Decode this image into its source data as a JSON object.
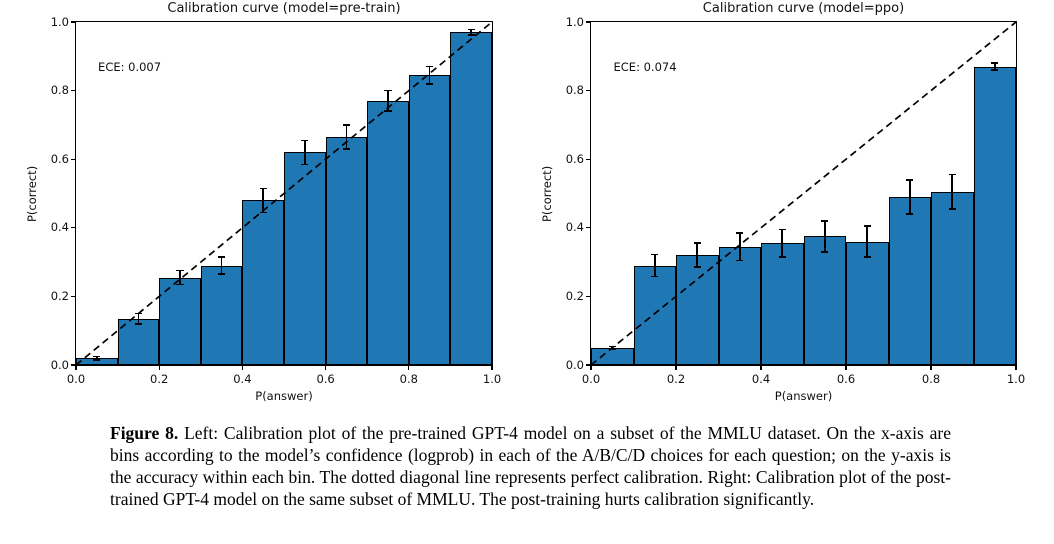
{
  "figure": {
    "caption": {
      "label": "Figure 8.",
      "text": " Left: Calibration plot of the pre-trained GPT-4 model on a subset of the MMLU dataset. On the x-axis are bins according to the model’s confidence (logprob) in each of the A/B/C/D choices for each question; on the y-axis is the accuracy within each bin. The dotted diagonal line represents perfect calibration. Right: Calibration plot of the post-trained GPT-4 model on the same subset of MMLU. The post-training hurts calibration significantly."
    }
  },
  "chart_data": [
    {
      "type": "bar",
      "title": "Calibration curve (model=pre-train)",
      "annotation": "ECE: 0.007",
      "xlabel": "P(answer)",
      "ylabel": "P(correct)",
      "xlim": [
        0.0,
        1.0
      ],
      "ylim": [
        0.0,
        1.0
      ],
      "xticks": [
        0.0,
        0.2,
        0.4,
        0.6,
        0.8,
        1.0
      ],
      "yticks": [
        0.0,
        0.2,
        0.4,
        0.6,
        0.8,
        1.0
      ],
      "bin_width": 0.1,
      "bin_left_edges": [
        0.0,
        0.1,
        0.2,
        0.3,
        0.4,
        0.5,
        0.6,
        0.7,
        0.8,
        0.9
      ],
      "values": [
        0.02,
        0.135,
        0.255,
        0.29,
        0.48,
        0.62,
        0.665,
        0.77,
        0.845,
        0.97
      ],
      "errors": [
        0.005,
        0.015,
        0.02,
        0.025,
        0.035,
        0.035,
        0.035,
        0.03,
        0.025,
        0.008
      ],
      "bar_color": "#1f77b4",
      "bar_edge_color": "#000000",
      "reference_line": "dashed diagonal y=x (perfect calibration)",
      "grid": false,
      "legend": "none"
    },
    {
      "type": "bar",
      "title": "Calibration curve (model=ppo)",
      "annotation": "ECE: 0.074",
      "xlabel": "P(answer)",
      "ylabel": "P(correct)",
      "xlim": [
        0.0,
        1.0
      ],
      "ylim": [
        0.0,
        1.0
      ],
      "xticks": [
        0.0,
        0.2,
        0.4,
        0.6,
        0.8,
        1.0
      ],
      "yticks": [
        0.0,
        0.2,
        0.4,
        0.6,
        0.8,
        1.0
      ],
      "bin_width": 0.1,
      "bin_left_edges": [
        0.0,
        0.1,
        0.2,
        0.3,
        0.4,
        0.5,
        0.6,
        0.7,
        0.8,
        0.9
      ],
      "values": [
        0.05,
        0.29,
        0.32,
        0.345,
        0.355,
        0.375,
        0.36,
        0.49,
        0.505,
        0.87
      ],
      "errors": [
        0.004,
        0.032,
        0.035,
        0.04,
        0.04,
        0.045,
        0.045,
        0.05,
        0.05,
        0.01
      ],
      "bar_color": "#1f77b4",
      "bar_edge_color": "#000000",
      "reference_line": "dashed diagonal y=x (perfect calibration)",
      "grid": false,
      "legend": "none"
    }
  ]
}
